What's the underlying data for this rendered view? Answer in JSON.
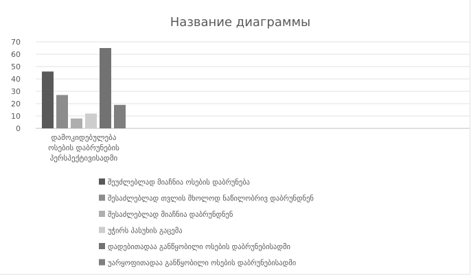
{
  "chart_data": {
    "type": "bar",
    "title": "Название диаграммы",
    "categories": [
      "დამოკიდებულება ოსების დაბრუნების პერსპექტივისადმი"
    ],
    "category_lines": [
      "დამოკიდებულება",
      "ოსების დაბრუნების",
      "პერსპექტივისადმი"
    ],
    "ylim": [
      0,
      70
    ],
    "yticks": [
      0,
      10,
      20,
      30,
      40,
      50,
      60,
      70
    ],
    "grid": true,
    "legend_position": "bottom",
    "series": [
      {
        "name": "შეუძლებლად მიაჩნია ოსების დაბრუნება",
        "values": [
          46
        ],
        "color": "#595959"
      },
      {
        "name": "შესაძლებლად თვლის მხოლოდ ნაწილობრივ დაბრუნდნენ",
        "values": [
          27
        ],
        "color": "#8c8c8c"
      },
      {
        "name": "შესაძლებლად მიაჩნია დაბრუნდნენ",
        "values": [
          8
        ],
        "color": "#aeaeae"
      },
      {
        "name": "უჭირს პასუხის გაცემა",
        "values": [
          12
        ],
        "color": "#cdcdcd"
      },
      {
        "name": "დადებითადაა განწყობილი ოსების დაბრუნებისადმი",
        "values": [
          65
        ],
        "color": "#727272"
      },
      {
        "name": "უარყოფითადაა განწყობილი ოსების დაბრუნებისადმი",
        "values": [
          19
        ],
        "color": "#7f7f7f"
      }
    ]
  }
}
